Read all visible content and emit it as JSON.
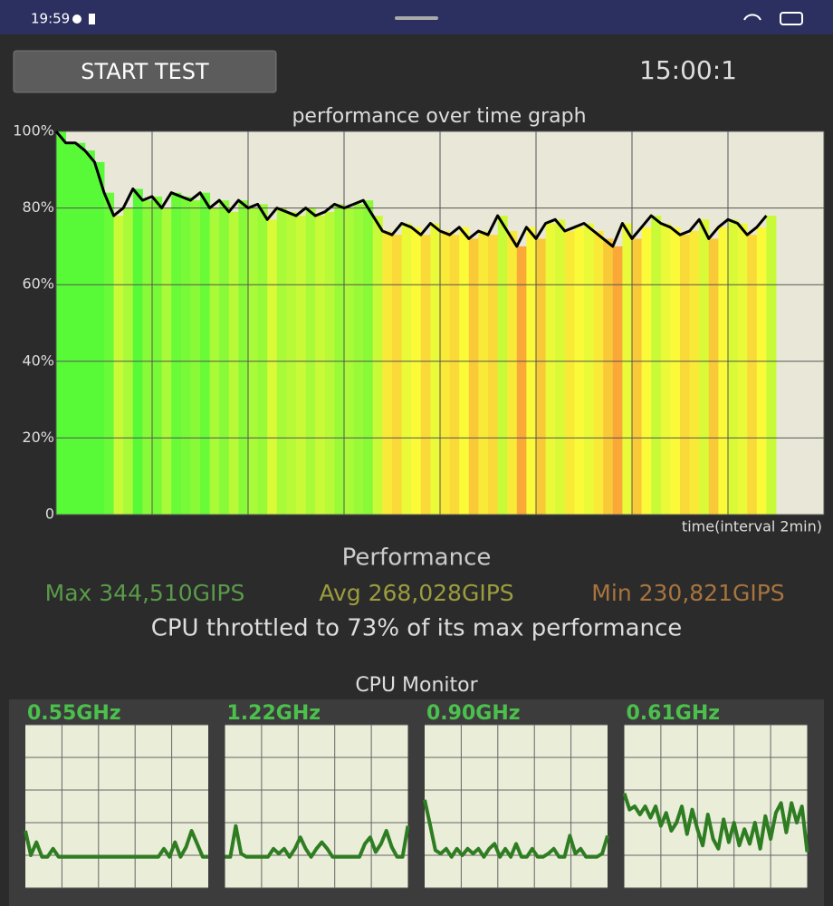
{
  "status_bar": {
    "time": "19:59"
  },
  "controls": {
    "button": "START TEST",
    "timer": "15:00:1"
  },
  "chart_data": [
    {
      "type": "line",
      "title": "performance over time graph",
      "x_label": "time(interval 2min)",
      "x": [
        0,
        0.2,
        0.4,
        0.6,
        0.8,
        1,
        1.2,
        1.4,
        1.6,
        1.8,
        2,
        2.2,
        2.4,
        2.6,
        2.8,
        3,
        3.2,
        3.4,
        3.6,
        3.8,
        4,
        4.2,
        4.4,
        4.6,
        4.8,
        5,
        5.2,
        5.4,
        5.6,
        5.8,
        6,
        6.2,
        6.4,
        6.6,
        6.8,
        7,
        7.2,
        7.4,
        7.6,
        7.8,
        8,
        8.2,
        8.4,
        8.6,
        8.8,
        9,
        9.2,
        9.4,
        9.6,
        9.8,
        10,
        10.2,
        10.4,
        10.6,
        10.8,
        11,
        11.2,
        11.4,
        11.6,
        11.8,
        12,
        12.2,
        12.4,
        12.6,
        12.8,
        13,
        13.2,
        13.4,
        13.6,
        13.8,
        14,
        14.2,
        14.4,
        14.6,
        14.8
      ],
      "values": [
        100,
        97,
        97,
        95,
        92,
        84,
        78,
        80,
        85,
        82,
        83,
        80,
        84,
        83,
        82,
        84,
        80,
        82,
        79,
        82,
        80,
        81,
        77,
        80,
        79,
        78,
        80,
        78,
        79,
        81,
        80,
        81,
        82,
        78,
        74,
        73,
        76,
        75,
        73,
        76,
        74,
        73,
        75,
        72,
        74,
        73,
        78,
        74,
        70,
        75,
        72,
        76,
        77,
        74,
        75,
        76,
        74,
        72,
        70,
        76,
        72,
        75,
        78,
        76,
        75,
        73,
        74,
        77,
        72,
        75,
        77,
        76,
        73,
        75,
        78
      ],
      "color": "#000000",
      "xlim": [
        0,
        16
      ],
      "xticks": [
        0,
        2,
        4,
        6,
        8,
        10,
        12,
        14,
        16
      ],
      "ylim": [
        0,
        100
      ],
      "yticks": [
        0,
        {
          "value": 20,
          "label": "20%"
        },
        {
          "value": 40,
          "label": "40%"
        },
        {
          "value": 60,
          "label": "60%"
        },
        {
          "value": 80,
          "label": "80%"
        },
        {
          "value": 100,
          "label": "100%"
        }
      ],
      "grid": true
    },
    {
      "type": "line",
      "title": "0.55GHz",
      "color": "#2e7d22",
      "ylim": [
        0,
        100
      ],
      "yticks": [
        0,
        20,
        40,
        60,
        80,
        100
      ],
      "grid": true,
      "values": [
        35,
        20,
        28,
        19,
        19,
        24,
        19,
        19,
        19,
        19,
        19,
        19,
        19,
        19,
        19,
        19,
        19,
        19,
        19,
        19,
        19,
        19,
        19,
        19,
        19,
        24,
        19,
        28,
        19,
        25,
        35,
        27,
        19,
        19
      ]
    },
    {
      "type": "line",
      "title": "1.22GHz",
      "color": "#2e7d22",
      "ylim": [
        0,
        100
      ],
      "yticks": [
        0,
        20,
        40,
        60,
        80,
        100
      ],
      "grid": true,
      "values": [
        19,
        19,
        38,
        21,
        19,
        19,
        19,
        19,
        19,
        24,
        21,
        24,
        19,
        24,
        31,
        24,
        19,
        24,
        28,
        24,
        19,
        19,
        19,
        19,
        19,
        19,
        27,
        31,
        22,
        27,
        35,
        25,
        19,
        19,
        38
      ]
    },
    {
      "type": "line",
      "title": "0.90GHz",
      "color": "#2e7d22",
      "ylim": [
        0,
        100
      ],
      "yticks": [
        0,
        20,
        40,
        60,
        80,
        100
      ],
      "grid": true,
      "values": [
        54,
        39,
        23,
        21,
        24,
        19,
        24,
        20,
        24,
        21,
        24,
        19,
        24,
        27,
        19,
        24,
        19,
        27,
        19,
        19,
        24,
        19,
        19,
        21,
        24,
        19,
        19,
        32,
        21,
        24,
        19,
        19,
        19,
        21,
        32
      ]
    },
    {
      "type": "line",
      "title": "0.61GHz",
      "color": "#2e7d22",
      "ylim": [
        0,
        100
      ],
      "yticks": [
        0,
        20,
        40,
        60,
        80,
        100
      ],
      "grid": true,
      "values": [
        58,
        48,
        50,
        45,
        50,
        43,
        50,
        38,
        46,
        35,
        40,
        50,
        33,
        48,
        36,
        26,
        45,
        30,
        24,
        42,
        28,
        40,
        26,
        36,
        27,
        40,
        24,
        44,
        30,
        46,
        52,
        34,
        52,
        40,
        50,
        22
      ]
    }
  ],
  "performance": {
    "title": "Performance",
    "max": "Max 344,510GIPS",
    "avg": "Avg 268,028GIPS",
    "min": "Min 230,821GIPS",
    "summary": "CPU throttled to 73% of its max performance"
  },
  "cpu_monitor": {
    "title": "CPU Monitor"
  }
}
